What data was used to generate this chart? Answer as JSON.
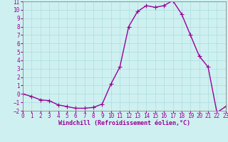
{
  "x": [
    0,
    1,
    2,
    3,
    4,
    5,
    6,
    7,
    8,
    9,
    10,
    11,
    12,
    13,
    14,
    15,
    16,
    17,
    18,
    19,
    20,
    21,
    22,
    23
  ],
  "y": [
    0,
    -0.3,
    -0.7,
    -0.8,
    -1.3,
    -1.5,
    -1.7,
    -1.7,
    -1.6,
    -1.2,
    1.2,
    3.2,
    8.0,
    9.8,
    10.5,
    10.3,
    10.5,
    11.1,
    9.5,
    7.0,
    4.5,
    3.2,
    -2.2,
    -1.5
  ],
  "line_color": "#990099",
  "marker": "+",
  "markersize": 4,
  "linewidth": 1.0,
  "markeredgewidth": 0.8,
  "xlim": [
    0,
    23
  ],
  "ylim": [
    -2,
    11
  ],
  "xticks": [
    0,
    1,
    2,
    3,
    4,
    5,
    6,
    7,
    8,
    9,
    10,
    11,
    12,
    13,
    14,
    15,
    16,
    17,
    18,
    19,
    20,
    21,
    22,
    23
  ],
  "yticks": [
    -2,
    -1,
    0,
    1,
    2,
    3,
    4,
    5,
    6,
    7,
    8,
    9,
    10,
    11
  ],
  "xlabel": "Windchill (Refroidissement éolien,°C)",
  "xlabel_fontsize": 6,
  "tick_fontsize": 5.5,
  "bg_color": "#cff0f0",
  "grid_color": "#aadddd",
  "spine_color": "#888888"
}
